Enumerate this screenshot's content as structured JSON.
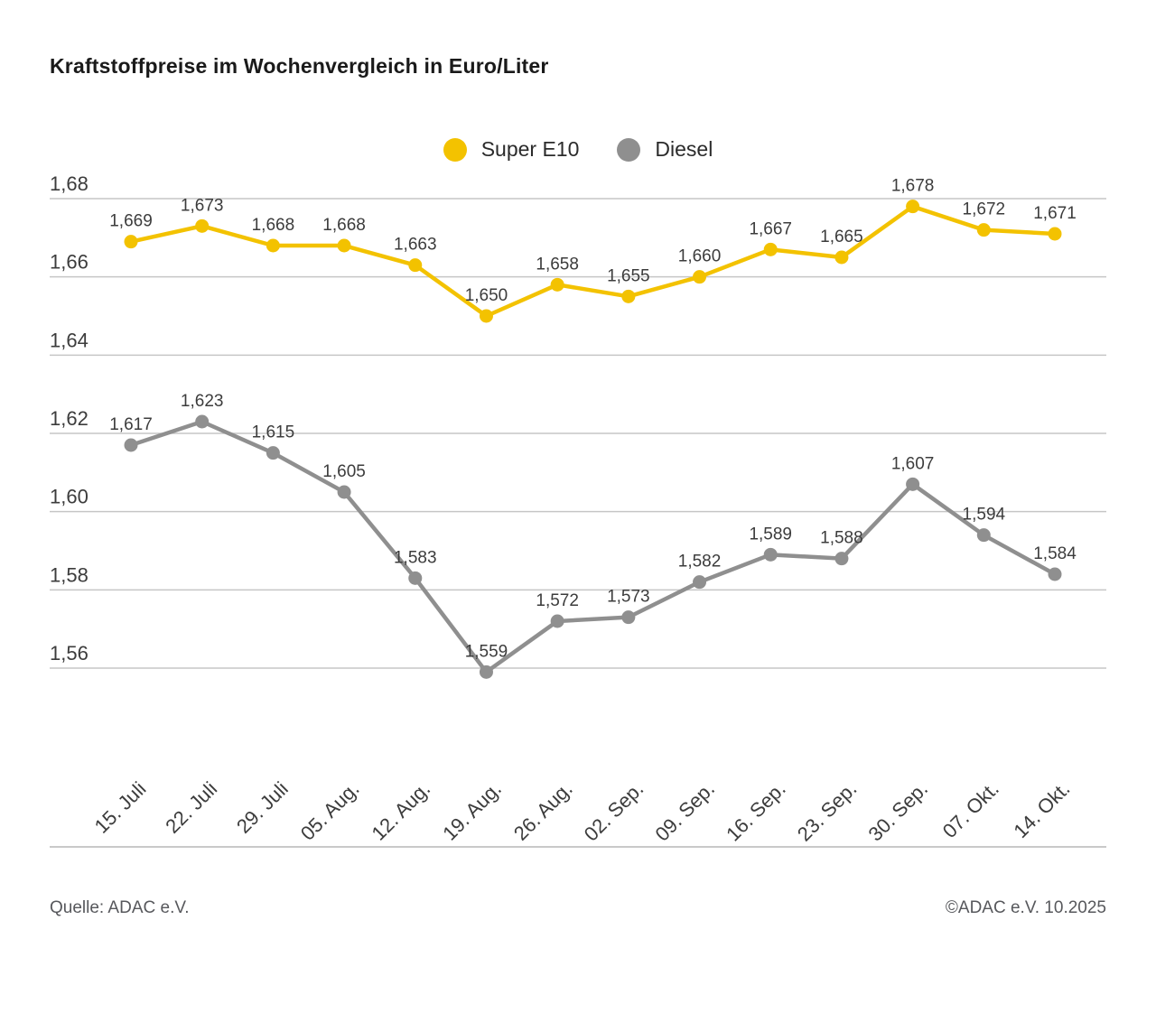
{
  "title": "Kraftstoffpreise im Wochenvergleich in Euro/Liter",
  "footer": {
    "source": "Quelle: ADAC e.V.",
    "copyright": "©ADAC e.V. 10.2025"
  },
  "chart_data": {
    "type": "line",
    "title": "Kraftstoffpreise im Wochenvergleich in Euro/Liter",
    "unit": "Euro/Liter",
    "categories": [
      "15. Juli",
      "22. Juli",
      "29. Juli",
      "05. Aug.",
      "12. Aug.",
      "19. Aug.",
      "26. Aug.",
      "02. Sep.",
      "09. Sep.",
      "16. Sep.",
      "23. Sep.",
      "30. Sep.",
      "07. Okt.",
      "14. Okt."
    ],
    "series": [
      {
        "name": "Super E10",
        "color": "#f3c200",
        "values": [
          1.669,
          1.673,
          1.668,
          1.668,
          1.663,
          1.65,
          1.658,
          1.655,
          1.66,
          1.667,
          1.665,
          1.678,
          1.672,
          1.671
        ]
      },
      {
        "name": "Diesel",
        "color": "#8f8f8f",
        "values": [
          1.617,
          1.623,
          1.615,
          1.605,
          1.583,
          1.559,
          1.572,
          1.573,
          1.582,
          1.589,
          1.588,
          1.607,
          1.594,
          1.584
        ]
      }
    ],
    "ylim": [
      1.56,
      1.68
    ],
    "ytick_step": 0.02,
    "ytick_labels": [
      "1,68",
      "1,66",
      "1,64",
      "1,62",
      "1,60",
      "1,58",
      "1,56"
    ],
    "grid": true,
    "legend_position": "top-center",
    "decimal_separator": ","
  }
}
